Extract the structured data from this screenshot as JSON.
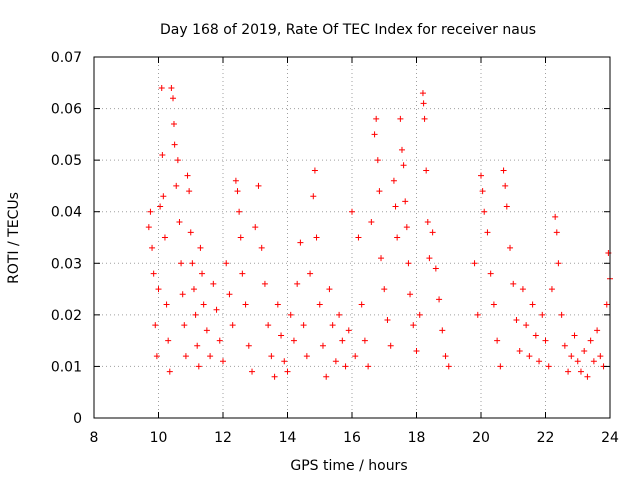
{
  "chart_data": {
    "type": "scatter",
    "title": "Day 168 of 2019, Rate Of TEC Index for receiver naus",
    "xlabel": "GPS time / hours",
    "ylabel": "ROTI / TECUs",
    "xlim": [
      8,
      24
    ],
    "ylim": [
      0,
      0.07
    ],
    "xticks": [
      8,
      10,
      12,
      14,
      16,
      18,
      20,
      22,
      24
    ],
    "yticks": [
      0,
      0.01,
      0.02,
      0.03,
      0.04,
      0.05,
      0.06,
      0.07
    ],
    "xtick_labels": [
      "8",
      "10",
      "12",
      "14",
      "16",
      "18",
      "20",
      "22",
      "24"
    ],
    "ytick_labels": [
      "0",
      "0.01",
      "0.02",
      "0.03",
      "0.04",
      "0.05",
      "0.06",
      "0.07"
    ],
    "grid": true,
    "marker": "+",
    "color": "#ff0000",
    "series": [
      {
        "name": "ROTI",
        "points": [
          [
            9.7,
            0.037
          ],
          [
            9.75,
            0.04
          ],
          [
            9.8,
            0.033
          ],
          [
            9.85,
            0.028
          ],
          [
            9.9,
            0.018
          ],
          [
            9.95,
            0.012
          ],
          [
            10.0,
            0.025
          ],
          [
            10.05,
            0.041
          ],
          [
            10.1,
            0.064
          ],
          [
            10.12,
            0.051
          ],
          [
            10.15,
            0.043
          ],
          [
            10.2,
            0.035
          ],
          [
            10.25,
            0.022
          ],
          [
            10.3,
            0.015
          ],
          [
            10.35,
            0.009
          ],
          [
            10.4,
            0.064
          ],
          [
            10.45,
            0.062
          ],
          [
            10.48,
            0.057
          ],
          [
            10.5,
            0.053
          ],
          [
            10.55,
            0.045
          ],
          [
            10.6,
            0.05
          ],
          [
            10.65,
            0.038
          ],
          [
            10.7,
            0.03
          ],
          [
            10.75,
            0.024
          ],
          [
            10.8,
            0.018
          ],
          [
            10.85,
            0.012
          ],
          [
            10.9,
            0.047
          ],
          [
            10.95,
            0.044
          ],
          [
            11.0,
            0.036
          ],
          [
            11.05,
            0.03
          ],
          [
            11.1,
            0.025
          ],
          [
            11.15,
            0.02
          ],
          [
            11.2,
            0.014
          ],
          [
            11.25,
            0.01
          ],
          [
            11.3,
            0.033
          ],
          [
            11.35,
            0.028
          ],
          [
            11.4,
            0.022
          ],
          [
            11.5,
            0.017
          ],
          [
            11.6,
            0.012
          ],
          [
            11.7,
            0.026
          ],
          [
            11.8,
            0.021
          ],
          [
            11.9,
            0.015
          ],
          [
            12.0,
            0.011
          ],
          [
            12.1,
            0.03
          ],
          [
            12.2,
            0.024
          ],
          [
            12.3,
            0.018
          ],
          [
            12.4,
            0.046
          ],
          [
            12.45,
            0.044
          ],
          [
            12.5,
            0.04
          ],
          [
            12.55,
            0.035
          ],
          [
            12.6,
            0.028
          ],
          [
            12.7,
            0.022
          ],
          [
            12.8,
            0.014
          ],
          [
            12.9,
            0.009
          ],
          [
            13.0,
            0.037
          ],
          [
            13.1,
            0.045
          ],
          [
            13.2,
            0.033
          ],
          [
            13.3,
            0.026
          ],
          [
            13.4,
            0.018
          ],
          [
            13.5,
            0.012
          ],
          [
            13.6,
            0.008
          ],
          [
            13.7,
            0.022
          ],
          [
            13.8,
            0.016
          ],
          [
            13.9,
            0.011
          ],
          [
            14.0,
            0.009
          ],
          [
            14.1,
            0.02
          ],
          [
            14.2,
            0.015
          ],
          [
            14.3,
            0.026
          ],
          [
            14.4,
            0.034
          ],
          [
            14.5,
            0.018
          ],
          [
            14.6,
            0.012
          ],
          [
            14.7,
            0.028
          ],
          [
            14.8,
            0.043
          ],
          [
            14.85,
            0.048
          ],
          [
            14.9,
            0.035
          ],
          [
            15.0,
            0.022
          ],
          [
            15.1,
            0.014
          ],
          [
            15.2,
            0.008
          ],
          [
            15.3,
            0.025
          ],
          [
            15.4,
            0.018
          ],
          [
            15.5,
            0.011
          ],
          [
            15.6,
            0.02
          ],
          [
            15.7,
            0.015
          ],
          [
            15.8,
            0.01
          ],
          [
            15.9,
            0.017
          ],
          [
            16.0,
            0.04
          ],
          [
            16.1,
            0.012
          ],
          [
            16.2,
            0.035
          ],
          [
            16.3,
            0.022
          ],
          [
            16.4,
            0.015
          ],
          [
            16.5,
            0.01
          ],
          [
            16.6,
            0.038
          ],
          [
            16.7,
            0.055
          ],
          [
            16.75,
            0.058
          ],
          [
            16.8,
            0.05
          ],
          [
            16.85,
            0.044
          ],
          [
            16.9,
            0.031
          ],
          [
            17.0,
            0.025
          ],
          [
            17.1,
            0.019
          ],
          [
            17.2,
            0.014
          ],
          [
            17.3,
            0.046
          ],
          [
            17.35,
            0.041
          ],
          [
            17.4,
            0.035
          ],
          [
            17.5,
            0.058
          ],
          [
            17.55,
            0.052
          ],
          [
            17.6,
            0.049
          ],
          [
            17.65,
            0.042
          ],
          [
            17.7,
            0.037
          ],
          [
            17.75,
            0.03
          ],
          [
            17.8,
            0.024
          ],
          [
            17.9,
            0.018
          ],
          [
            18.0,
            0.013
          ],
          [
            18.1,
            0.02
          ],
          [
            18.2,
            0.063
          ],
          [
            18.22,
            0.061
          ],
          [
            18.25,
            0.058
          ],
          [
            18.3,
            0.048
          ],
          [
            18.35,
            0.038
          ],
          [
            18.4,
            0.031
          ],
          [
            18.5,
            0.036
          ],
          [
            18.6,
            0.029
          ],
          [
            18.7,
            0.023
          ],
          [
            18.8,
            0.017
          ],
          [
            18.9,
            0.012
          ],
          [
            19.0,
            0.01
          ],
          [
            19.8,
            0.03
          ],
          [
            19.9,
            0.02
          ],
          [
            20.0,
            0.047
          ],
          [
            20.05,
            0.044
          ],
          [
            20.1,
            0.04
          ],
          [
            20.2,
            0.036
          ],
          [
            20.3,
            0.028
          ],
          [
            20.4,
            0.022
          ],
          [
            20.5,
            0.015
          ],
          [
            20.6,
            0.01
          ],
          [
            20.7,
            0.048
          ],
          [
            20.75,
            0.045
          ],
          [
            20.8,
            0.041
          ],
          [
            20.9,
            0.033
          ],
          [
            21.0,
            0.026
          ],
          [
            21.1,
            0.019
          ],
          [
            21.2,
            0.013
          ],
          [
            21.3,
            0.025
          ],
          [
            21.4,
            0.018
          ],
          [
            21.5,
            0.012
          ],
          [
            21.6,
            0.022
          ],
          [
            21.7,
            0.016
          ],
          [
            21.8,
            0.011
          ],
          [
            21.9,
            0.02
          ],
          [
            22.0,
            0.015
          ],
          [
            22.1,
            0.01
          ],
          [
            22.2,
            0.025
          ],
          [
            22.3,
            0.039
          ],
          [
            22.35,
            0.036
          ],
          [
            22.4,
            0.03
          ],
          [
            22.5,
            0.02
          ],
          [
            22.6,
            0.014
          ],
          [
            22.7,
            0.009
          ],
          [
            22.8,
            0.012
          ],
          [
            22.9,
            0.016
          ],
          [
            23.0,
            0.011
          ],
          [
            23.1,
            0.009
          ],
          [
            23.2,
            0.013
          ],
          [
            23.3,
            0.008
          ],
          [
            23.4,
            0.015
          ],
          [
            23.5,
            0.011
          ],
          [
            23.6,
            0.017
          ],
          [
            23.7,
            0.012
          ],
          [
            23.8,
            0.01
          ],
          [
            23.9,
            0.022
          ],
          [
            23.95,
            0.032
          ],
          [
            24.0,
            0.027
          ]
        ]
      }
    ]
  }
}
